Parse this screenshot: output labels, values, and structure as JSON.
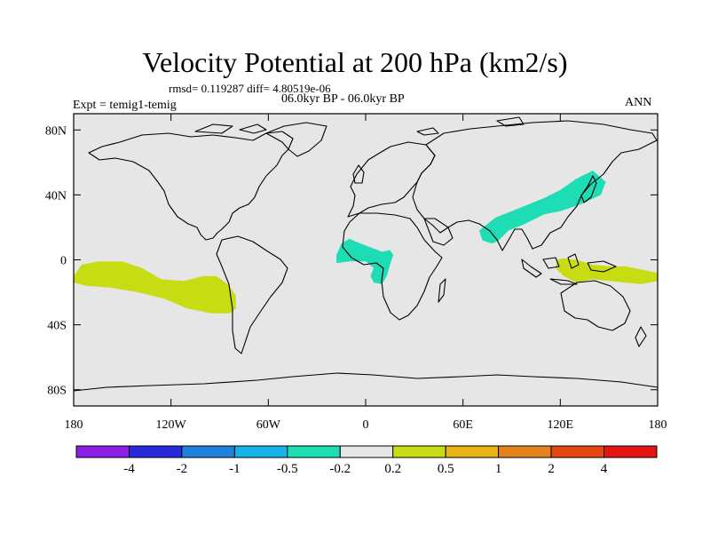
{
  "chart_data": {
    "type": "contour-map",
    "title": "Velocity Potential at 200 hPa (km2/s)",
    "stats_text": "rmsd= 0.119287 diff= 4.80519e-06",
    "left_label": "Expt = temig1-temig",
    "center_label": "06.0kyr BP - 06.0kyr BP",
    "right_label": "ANN",
    "x_axis": {
      "range": [
        -180,
        180
      ],
      "ticks": [
        -180,
        -120,
        -60,
        0,
        60,
        120,
        180
      ],
      "tick_labels": [
        "180",
        "120W",
        "60W",
        "0",
        "60E",
        "120E",
        "180"
      ]
    },
    "y_axis": {
      "range": [
        -90,
        90
      ],
      "ticks": [
        80,
        40,
        0,
        -40,
        -80
      ],
      "tick_labels": [
        "80N",
        "40N",
        "0",
        "40S",
        "80S"
      ]
    },
    "background_color": "#e6e6e6",
    "colorbar": {
      "labels": [
        "-4",
        "-2",
        "-1",
        "-0.5",
        "-0.2",
        "0.2",
        "0.5",
        "1",
        "2",
        "4"
      ],
      "colors": [
        "#8c1ee6",
        "#2828dc",
        "#1e82dc",
        "#14b4e6",
        "#1edcb4",
        "#e6e6e6",
        "#c8dc14",
        "#e6b414",
        "#e6821e",
        "#e64614",
        "#e61414"
      ]
    },
    "anomaly_regions": [
      {
        "name": "central-pacific",
        "level": "0.2 to 0.5",
        "color": "#c8dc14",
        "lonlat": [
          [
            -180,
            -10
          ],
          [
            -175,
            -3
          ],
          [
            -165,
            -1
          ],
          [
            -150,
            -1
          ],
          [
            -138,
            -5
          ],
          [
            -126,
            -12
          ],
          [
            -112,
            -13
          ],
          [
            -100,
            -10
          ],
          [
            -92,
            -10
          ],
          [
            -85,
            -15
          ],
          [
            -80,
            -22
          ],
          [
            -80,
            -30
          ],
          [
            -84,
            -33
          ],
          [
            -95,
            -33
          ],
          [
            -110,
            -30
          ],
          [
            -124,
            -24
          ],
          [
            -140,
            -20
          ],
          [
            -158,
            -17
          ],
          [
            -172,
            -16
          ],
          [
            -180,
            -14
          ]
        ]
      },
      {
        "name": "west-pacific",
        "level": "0.2 to 0.5",
        "color": "#c8dc14",
        "lonlat": [
          [
            118,
            0
          ],
          [
            122,
            1
          ],
          [
            130,
            0
          ],
          [
            140,
            -3
          ],
          [
            150,
            -4
          ],
          [
            160,
            -4
          ],
          [
            170,
            -6
          ],
          [
            180,
            -8
          ],
          [
            180,
            -13
          ],
          [
            170,
            -15
          ],
          [
            160,
            -14
          ],
          [
            150,
            -13
          ],
          [
            140,
            -12
          ],
          [
            130,
            -14
          ],
          [
            122,
            -10
          ],
          [
            117,
            -5
          ]
        ]
      },
      {
        "name": "africa",
        "level": "-0.5 to -0.2",
        "color": "#1edcb4",
        "lonlat": [
          [
            -18,
            3
          ],
          [
            -15,
            10
          ],
          [
            -10,
            13
          ],
          [
            -3,
            10
          ],
          [
            5,
            7
          ],
          [
            10,
            5
          ],
          [
            15,
            6
          ],
          [
            17,
            3
          ],
          [
            15,
            -3
          ],
          [
            13,
            -10
          ],
          [
            10,
            -15
          ],
          [
            5,
            -14
          ],
          [
            3,
            -10
          ],
          [
            5,
            -5
          ],
          [
            0,
            -1
          ],
          [
            -10,
            -1
          ],
          [
            -18,
            -2
          ]
        ]
      },
      {
        "name": "asia",
        "level": "-0.5 to -0.2",
        "color": "#1edcb4",
        "lonlat": [
          [
            70,
            18
          ],
          [
            80,
            26
          ],
          [
            90,
            30
          ],
          [
            100,
            34
          ],
          [
            110,
            38
          ],
          [
            120,
            43
          ],
          [
            130,
            50
          ],
          [
            140,
            55
          ],
          [
            148,
            48
          ],
          [
            145,
            40
          ],
          [
            132,
            34
          ],
          [
            120,
            30
          ],
          [
            110,
            28
          ],
          [
            98,
            22
          ],
          [
            88,
            18
          ],
          [
            82,
            12
          ],
          [
            78,
            10
          ],
          [
            72,
            12
          ]
        ]
      }
    ]
  }
}
